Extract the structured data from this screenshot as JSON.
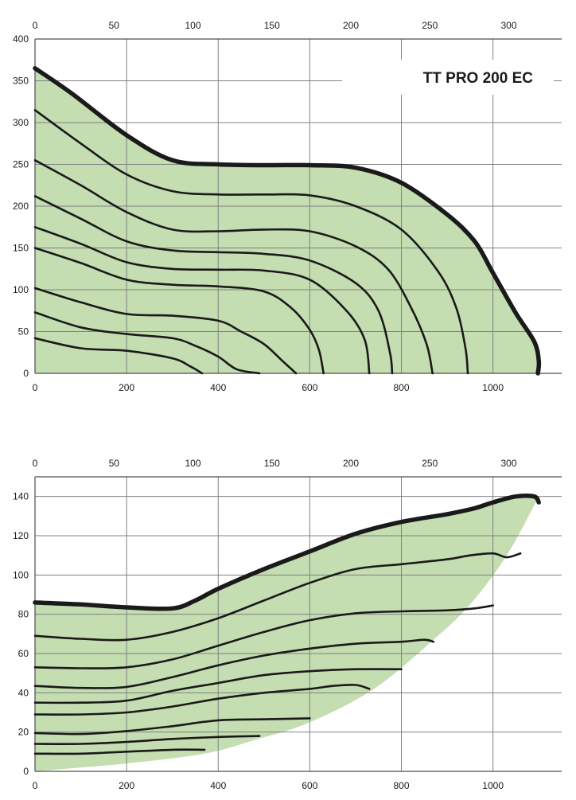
{
  "chart_data": [
    {
      "type": "line",
      "title": "TT PRO 200 EC",
      "xlabel": "",
      "ylabel": "",
      "xlim": [
        0,
        1150
      ],
      "ylim": [
        0,
        400
      ],
      "x_ticks": [
        0,
        200,
        400,
        600,
        800,
        1000
      ],
      "y_ticks": [
        0,
        50,
        100,
        150,
        200,
        250,
        300,
        350,
        400
      ],
      "x2lim": [
        0,
        333.5
      ],
      "x2_ticks": [
        0,
        50,
        100,
        150,
        200,
        250,
        300
      ],
      "grid": true,
      "series": [
        {
          "values": [
            [
              0,
              365
            ],
            [
              80,
              335
            ],
            [
              200,
              285
            ],
            [
              300,
              255
            ],
            [
              400,
              250
            ],
            [
              500,
              249
            ],
            [
              600,
              249
            ],
            [
              700,
              246
            ],
            [
              800,
              228
            ],
            [
              900,
              190
            ],
            [
              960,
              158
            ],
            [
              1000,
              120
            ],
            [
              1050,
              72
            ],
            [
              1090,
              38
            ],
            [
              1100,
              15
            ],
            [
              1098,
              0
            ]
          ]
        },
        {
          "values": [
            [
              0,
              315
            ],
            [
              100,
              275
            ],
            [
              200,
              238
            ],
            [
              300,
              218
            ],
            [
              400,
              214
            ],
            [
              500,
              214
            ],
            [
              600,
              213
            ],
            [
              700,
              200
            ],
            [
              800,
              172
            ],
            [
              880,
              122
            ],
            [
              920,
              78
            ],
            [
              940,
              30
            ],
            [
              945,
              0
            ]
          ]
        },
        {
          "values": [
            [
              0,
              255
            ],
            [
              100,
              225
            ],
            [
              200,
              193
            ],
            [
              300,
              172
            ],
            [
              400,
              170
            ],
            [
              500,
              172
            ],
            [
              600,
              170
            ],
            [
              700,
              152
            ],
            [
              770,
              125
            ],
            [
              820,
              80
            ],
            [
              855,
              35
            ],
            [
              868,
              0
            ]
          ]
        },
        {
          "values": [
            [
              0,
              212
            ],
            [
              100,
              185
            ],
            [
              200,
              158
            ],
            [
              300,
              147
            ],
            [
              400,
              145
            ],
            [
              500,
              143
            ],
            [
              600,
              135
            ],
            [
              700,
              108
            ],
            [
              750,
              75
            ],
            [
              775,
              25
            ],
            [
              780,
              0
            ]
          ]
        },
        {
          "values": [
            [
              0,
              175
            ],
            [
              100,
              155
            ],
            [
              200,
              133
            ],
            [
              300,
              125
            ],
            [
              400,
              124
            ],
            [
              500,
              123
            ],
            [
              600,
              112
            ],
            [
              680,
              75
            ],
            [
              720,
              40
            ],
            [
              730,
              0
            ]
          ]
        },
        {
          "values": [
            [
              0,
              150
            ],
            [
              100,
              132
            ],
            [
              200,
              112
            ],
            [
              300,
              106
            ],
            [
              400,
              104
            ],
            [
              500,
              98
            ],
            [
              560,
              78
            ],
            [
              600,
              52
            ],
            [
              620,
              28
            ],
            [
              630,
              0
            ]
          ]
        },
        {
          "values": [
            [
              0,
              102
            ],
            [
              100,
              85
            ],
            [
              200,
              71
            ],
            [
              300,
              69
            ],
            [
              400,
              63
            ],
            [
              450,
              50
            ],
            [
              500,
              35
            ],
            [
              540,
              15
            ],
            [
              570,
              0
            ]
          ]
        },
        {
          "values": [
            [
              0,
              73
            ],
            [
              100,
              55
            ],
            [
              200,
              47
            ],
            [
              300,
              42
            ],
            [
              350,
              33
            ],
            [
              400,
              20
            ],
            [
              440,
              5
            ],
            [
              490,
              0
            ]
          ]
        },
        {
          "values": [
            [
              0,
              42
            ],
            [
              100,
              30
            ],
            [
              200,
              27
            ],
            [
              300,
              18
            ],
            [
              340,
              8
            ],
            [
              365,
              0
            ]
          ]
        }
      ]
    },
    {
      "type": "line",
      "title": "",
      "xlabel": "",
      "ylabel": "",
      "xlim": [
        0,
        1150
      ],
      "ylim": [
        0,
        150
      ],
      "x_ticks": [
        0,
        200,
        400,
        600,
        800,
        1000
      ],
      "y_ticks": [
        0,
        20,
        40,
        60,
        80,
        100,
        120,
        140
      ],
      "x2lim": [
        0,
        333.5
      ],
      "x2_ticks": [
        0,
        50,
        100,
        150,
        200,
        250,
        300
      ],
      "grid": true,
      "area_boundary": [
        [
          0,
          0
        ],
        [
          200,
          4
        ],
        [
          370,
          9
        ],
        [
          480,
          16
        ],
        [
          600,
          25
        ],
        [
          740,
          42
        ],
        [
          870,
          67
        ],
        [
          950,
          85
        ],
        [
          1030,
          110
        ],
        [
          1100,
          140
        ]
      ],
      "series": [
        {
          "values": [
            [
              0,
              86
            ],
            [
              100,
              85
            ],
            [
              200,
              83.5
            ],
            [
              300,
              83
            ],
            [
              350,
              87
            ],
            [
              400,
              93
            ],
            [
              500,
              103
            ],
            [
              600,
              112
            ],
            [
              700,
              121
            ],
            [
              800,
              127
            ],
            [
              900,
              131
            ],
            [
              960,
              134
            ],
            [
              1000,
              137
            ],
            [
              1050,
              140
            ],
            [
              1090,
              140
            ],
            [
              1100,
              137
            ]
          ]
        },
        {
          "values": [
            [
              0,
              69
            ],
            [
              100,
              67.5
            ],
            [
              200,
              67
            ],
            [
              300,
              71
            ],
            [
              400,
              78
            ],
            [
              500,
              87
            ],
            [
              600,
              96
            ],
            [
              700,
              103
            ],
            [
              800,
              105.5
            ],
            [
              900,
              108
            ],
            [
              950,
              110
            ],
            [
              1000,
              111
            ],
            [
              1030,
              109
            ],
            [
              1060,
              111
            ]
          ]
        },
        {
          "values": [
            [
              0,
              53
            ],
            [
              100,
              52.5
            ],
            [
              200,
              53
            ],
            [
              300,
              57
            ],
            [
              400,
              64
            ],
            [
              500,
              71
            ],
            [
              600,
              77
            ],
            [
              700,
              80.5
            ],
            [
              800,
              81.5
            ],
            [
              900,
              82
            ],
            [
              960,
              83
            ],
            [
              1000,
              84.5
            ]
          ]
        },
        {
          "values": [
            [
              0,
              43.5
            ],
            [
              100,
              42.5
            ],
            [
              200,
              43
            ],
            [
              300,
              48
            ],
            [
              400,
              54
            ],
            [
              500,
              59
            ],
            [
              600,
              62.5
            ],
            [
              700,
              65
            ],
            [
              800,
              66
            ],
            [
              850,
              67
            ],
            [
              870,
              66
            ]
          ]
        },
        {
          "values": [
            [
              0,
              35
            ],
            [
              100,
              35
            ],
            [
              200,
              36
            ],
            [
              300,
              41
            ],
            [
              400,
              45
            ],
            [
              500,
              49
            ],
            [
              600,
              51
            ],
            [
              700,
              52
            ],
            [
              800,
              52
            ]
          ]
        },
        {
          "values": [
            [
              0,
              29
            ],
            [
              100,
              29
            ],
            [
              200,
              30
            ],
            [
              300,
              33
            ],
            [
              400,
              37
            ],
            [
              500,
              40
            ],
            [
              600,
              42
            ],
            [
              650,
              43.5
            ],
            [
              700,
              44
            ],
            [
              730,
              42
            ]
          ]
        },
        {
          "values": [
            [
              0,
              19.5
            ],
            [
              100,
              19
            ],
            [
              200,
              20.5
            ],
            [
              300,
              23
            ],
            [
              400,
              26
            ],
            [
              500,
              26.5
            ],
            [
              600,
              27
            ]
          ]
        },
        {
          "values": [
            [
              0,
              14
            ],
            [
              100,
              14
            ],
            [
              200,
              15
            ],
            [
              300,
              16.5
            ],
            [
              400,
              17.5
            ],
            [
              490,
              18
            ]
          ]
        },
        {
          "values": [
            [
              0,
              9
            ],
            [
              100,
              9
            ],
            [
              200,
              10
            ],
            [
              300,
              11
            ],
            [
              370,
              11
            ]
          ]
        }
      ]
    }
  ]
}
